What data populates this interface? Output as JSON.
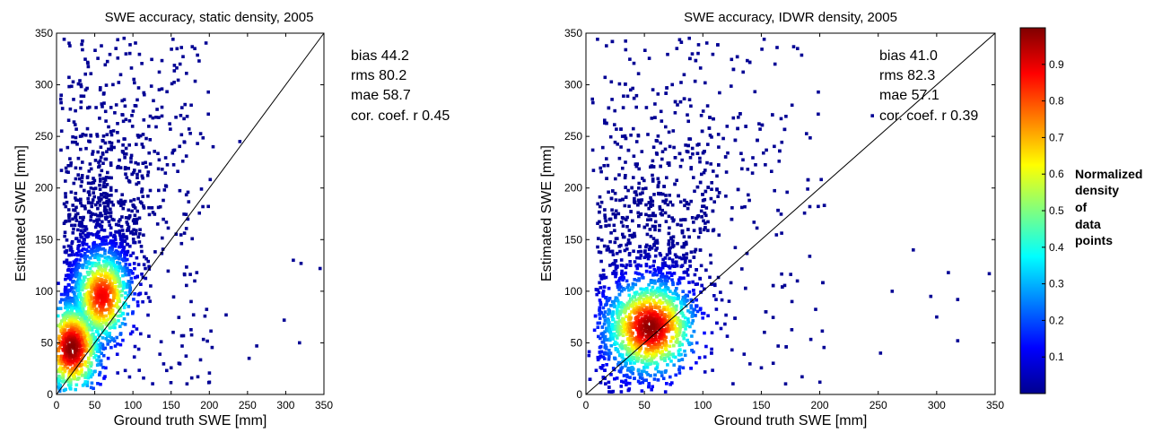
{
  "chart_data": [
    {
      "type": "scatter",
      "title": "SWE accuracy, static density, 2005",
      "xlabel": "Ground truth SWE [mm]",
      "ylabel": "Estimated SWE [mm]",
      "xlim": [
        0,
        350
      ],
      "ylim": [
        0,
        350
      ],
      "xticks": [
        "0",
        "50",
        "100",
        "150",
        "200",
        "250",
        "300",
        "350"
      ],
      "yticks": [
        "0",
        "50",
        "100",
        "150",
        "200",
        "250",
        "300",
        "350"
      ],
      "stats": [
        "bias 44.2",
        "rms 80.2",
        "mae 58.7",
        "cor. coef. r 0.45"
      ],
      "one_to_one_line": true,
      "density_clusters": [
        {
          "x": 20,
          "y": 45,
          "density": 1.0
        },
        {
          "x": 60,
          "y": 95,
          "density": 0.9
        }
      ],
      "outliers": [
        [
          222,
          77
        ],
        [
          262,
          47
        ],
        [
          298,
          72
        ],
        [
          310,
          130
        ],
        [
          320,
          127
        ],
        [
          345,
          122
        ],
        [
          318,
          50
        ],
        [
          252,
          35
        ],
        [
          205,
          240
        ],
        [
          240,
          245
        ]
      ]
    },
    {
      "type": "scatter",
      "title": "SWE accuracy, IDWR density, 2005",
      "xlabel": "Ground truth SWE [mm]",
      "ylabel": "Estimated SWE [mm]",
      "xlim": [
        0,
        350
      ],
      "ylim": [
        0,
        350
      ],
      "xticks": [
        "0",
        "50",
        "100",
        "150",
        "200",
        "250",
        "300",
        "350"
      ],
      "yticks": [
        "0",
        "50",
        "100",
        "150",
        "200",
        "250",
        "300",
        "350"
      ],
      "stats": [
        "bias 41.0",
        "rms 82.3",
        "mae 57.1",
        "cor. coef. r 0.39"
      ],
      "one_to_one_line": true,
      "density_clusters": [
        {
          "x": 55,
          "y": 65,
          "density": 1.0
        }
      ],
      "outliers": [
        [
          280,
          140
        ],
        [
          295,
          95
        ],
        [
          300,
          75
        ],
        [
          310,
          118
        ],
        [
          318,
          92
        ],
        [
          345,
          117
        ],
        [
          318,
          52
        ],
        [
          252,
          40
        ],
        [
          245,
          270
        ],
        [
          262,
          100
        ]
      ]
    }
  ],
  "colorbar": {
    "title_lines": [
      "Normalized",
      "density",
      "of",
      "data",
      "points"
    ],
    "ticks": [
      "0.1",
      "0.2",
      "0.3",
      "0.4",
      "0.5",
      "0.6",
      "0.7",
      "0.8",
      "0.9"
    ],
    "range": [
      0,
      1
    ],
    "colormap": "jet"
  }
}
